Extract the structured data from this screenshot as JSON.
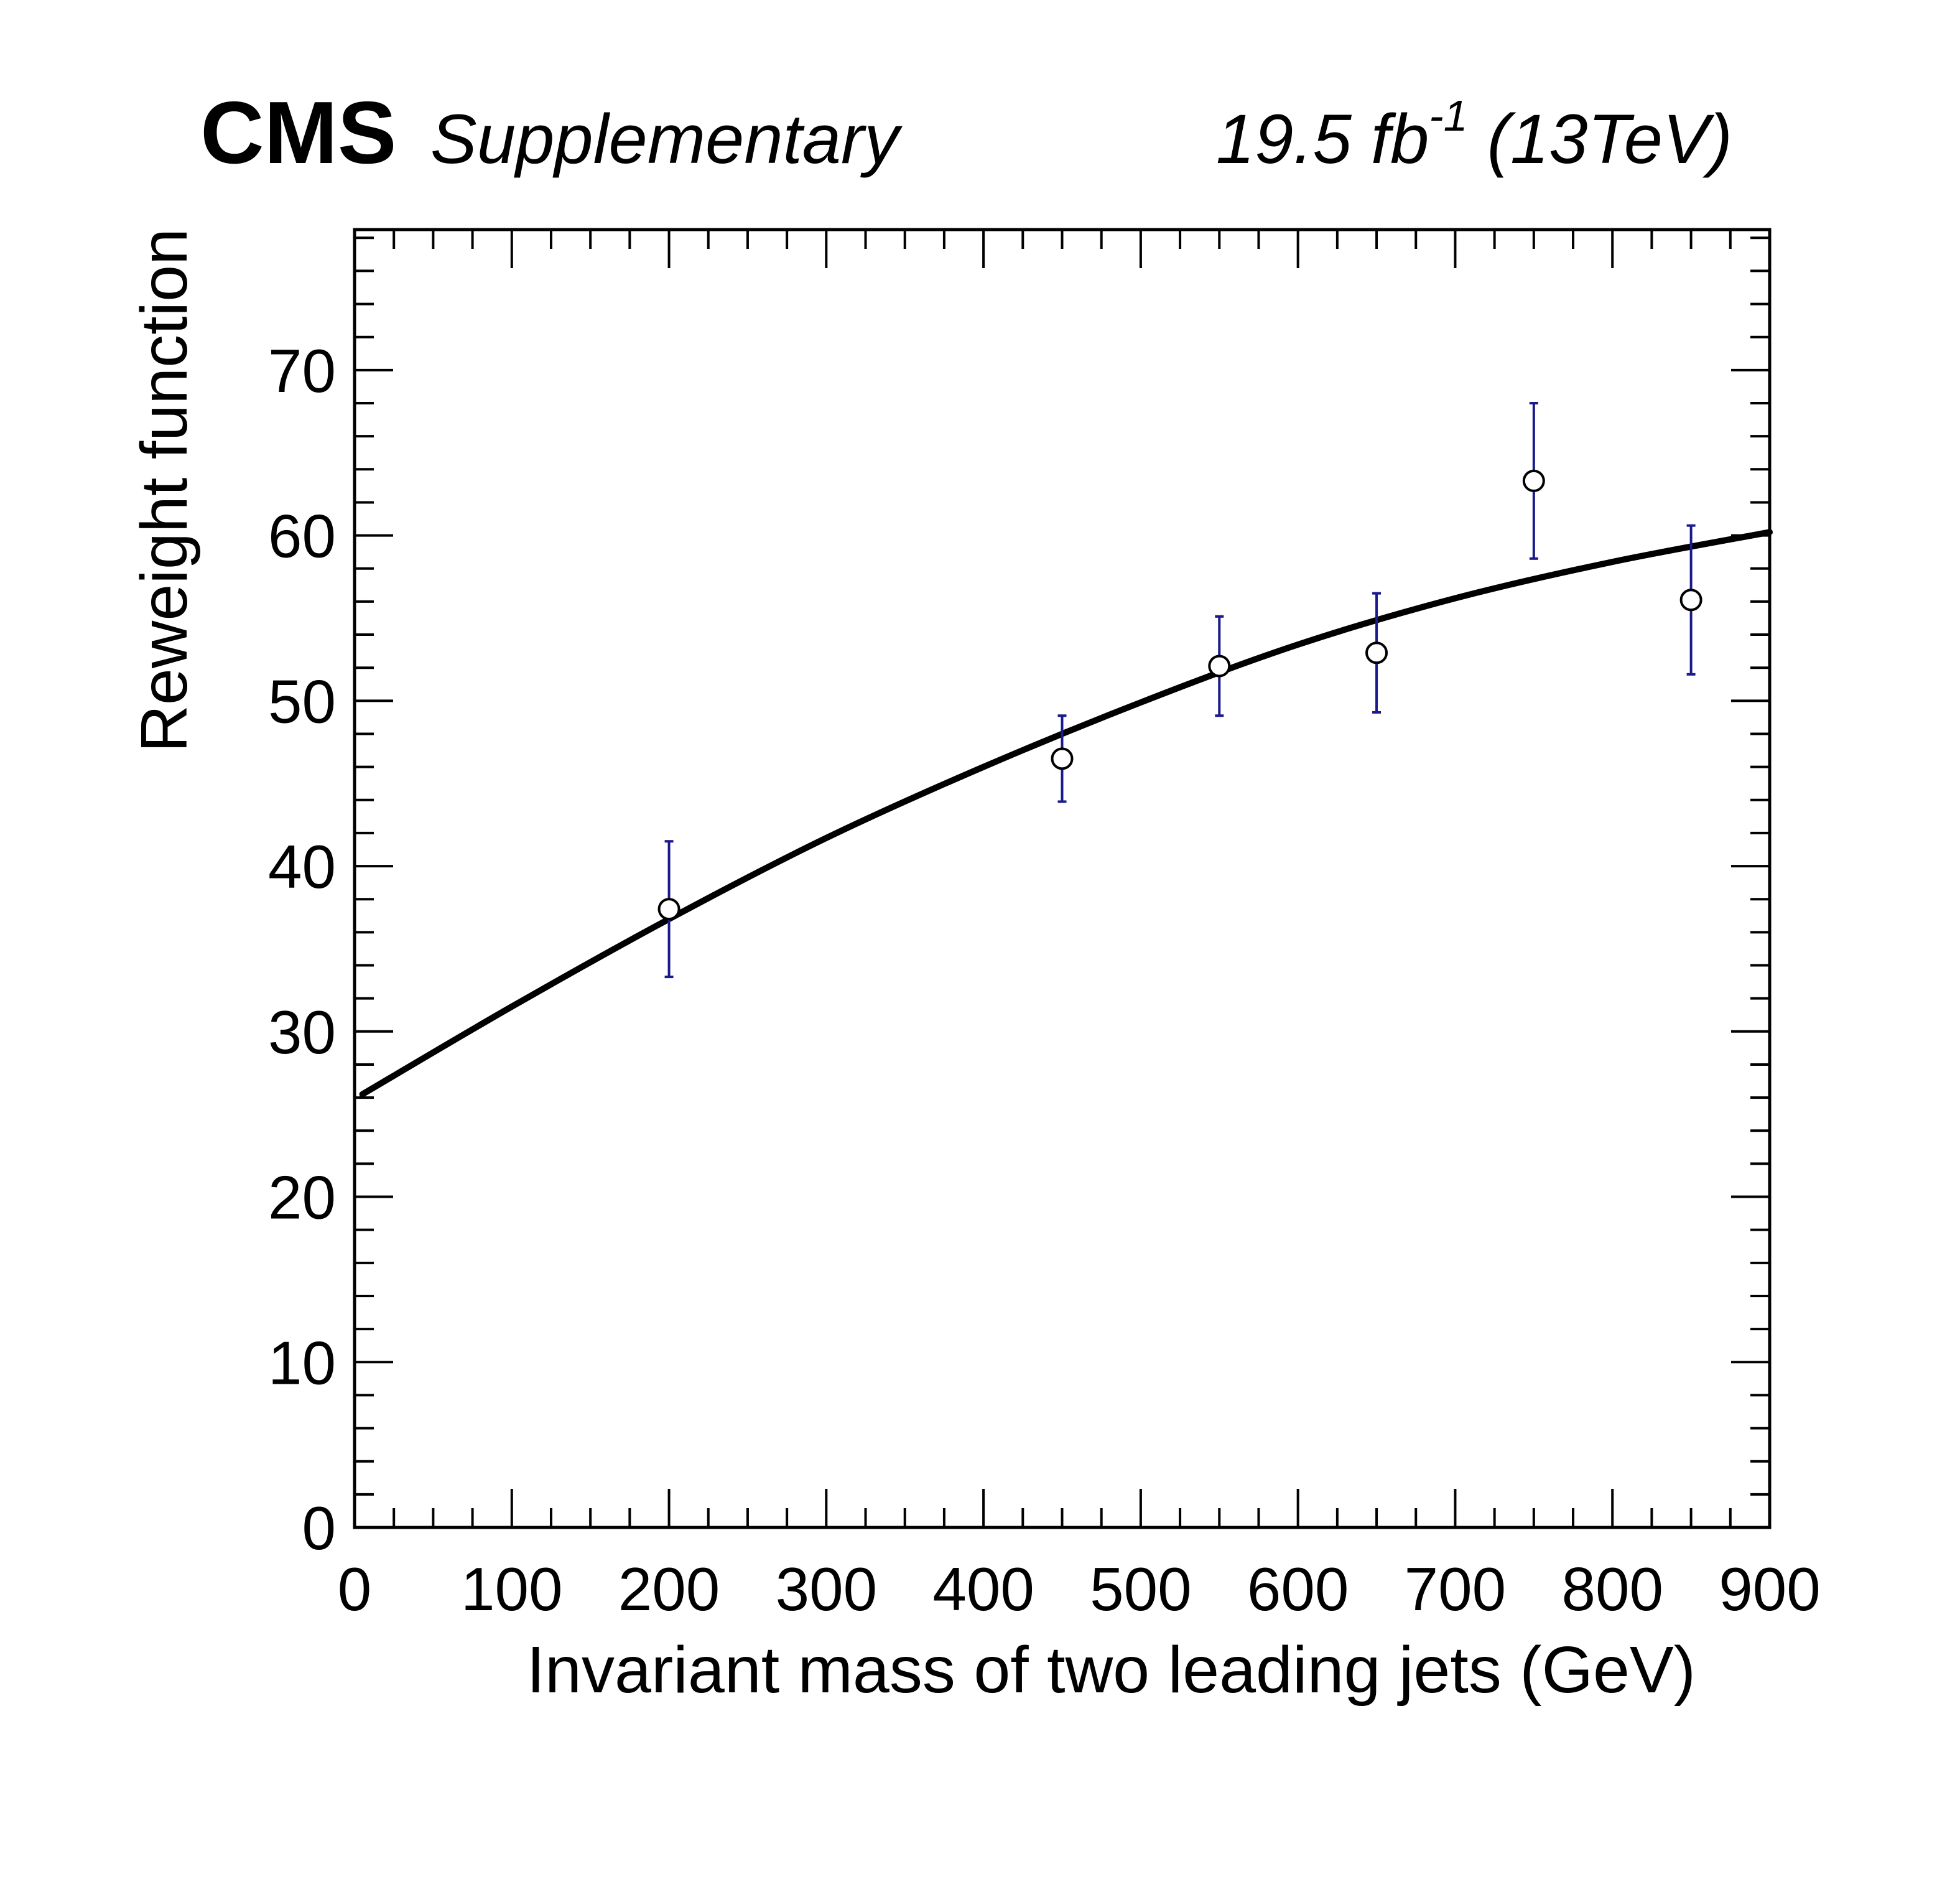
{
  "header": {
    "experiment": "CMS",
    "tag": "Supplementary",
    "lumi_value": "19.5 fb",
    "lumi_exponent": "-1",
    "energy": "(13TeV)"
  },
  "chart_data": {
    "type": "scatter",
    "xlabel": "Invariant mass of two leading jets (GeV)",
    "ylabel": "Reweight function",
    "xlim": [
      0,
      900
    ],
    "ylim": [
      0,
      78.5
    ],
    "xticks": [
      0,
      100,
      200,
      300,
      400,
      500,
      600,
      700,
      800,
      900
    ],
    "yticks": [
      0,
      10,
      20,
      30,
      40,
      50,
      60,
      70
    ],
    "grid": false,
    "legend": "none",
    "colors": {
      "points": "#000000",
      "error_bars": "#1a1a8c",
      "fit": "#000000"
    },
    "series": [
      {
        "kind": "points_with_errors",
        "points": [
          {
            "x": 200,
            "y": 37.4,
            "err_low": 4.1,
            "err_high": 4.1
          },
          {
            "x": 450,
            "y": 46.5,
            "err_low": 2.6,
            "err_high": 2.6
          },
          {
            "x": 550,
            "y": 52.1,
            "err_low": 3.0,
            "err_high": 3.0
          },
          {
            "x": 650,
            "y": 52.9,
            "err_low": 3.6,
            "err_high": 3.6
          },
          {
            "x": 750,
            "y": 63.3,
            "err_low": 4.7,
            "err_high": 4.7
          },
          {
            "x": 850,
            "y": 56.1,
            "err_low": 4.5,
            "err_high": 4.5
          }
        ]
      },
      {
        "kind": "fit_curve",
        "x": [
          5,
          100,
          200,
          300,
          400,
          500,
          600,
          700,
          800,
          900
        ],
        "y": [
          26.2,
          31.5,
          36.8,
          41.7,
          46.0,
          49.9,
          53.4,
          56.2,
          58.4,
          60.2
        ]
      }
    ]
  }
}
